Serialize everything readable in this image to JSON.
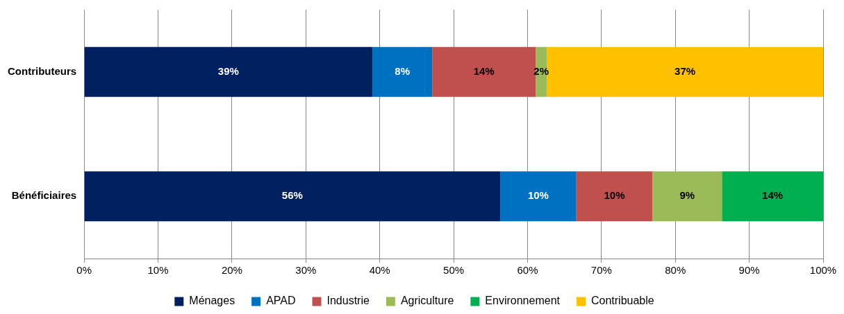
{
  "chart_data": {
    "type": "bar",
    "orientation": "horizontal",
    "stacked": true,
    "categories": [
      "Contributeurs",
      "Bénéficiaires"
    ],
    "series": [
      {
        "name": "Ménages",
        "color": "#002060",
        "values": [
          39,
          56.3
        ],
        "value_labels": [
          "39%",
          "56%"
        ]
      },
      {
        "name": "APAD",
        "color": "#0070c0",
        "values": [
          8.1,
          10.3
        ],
        "value_labels": [
          "8%",
          "10%"
        ]
      },
      {
        "name": "Industrie",
        "color": "#c0504d",
        "values": [
          14,
          10.3
        ],
        "value_labels": [
          "14%",
          "10%"
        ]
      },
      {
        "name": "Agriculture",
        "color": "#9bbb59",
        "values": [
          1.5,
          9.4
        ],
        "value_labels": [
          "2%",
          "9%"
        ]
      },
      {
        "name": "Environnement",
        "color": "#00b050",
        "values": [
          null,
          13.7
        ],
        "value_labels": [
          null,
          "14%"
        ]
      },
      {
        "name": "Contribuable",
        "color": "#ffc000",
        "values": [
          37.4,
          null
        ],
        "value_labels": [
          "37%",
          null
        ]
      }
    ],
    "xlim": [
      0,
      100
    ],
    "xticks": [
      {
        "value": 0,
        "label": "0%"
      },
      {
        "value": 10,
        "label": "10%"
      },
      {
        "value": 20,
        "label": "20%"
      },
      {
        "value": 30,
        "label": "30%"
      },
      {
        "value": 40,
        "label": "40%"
      },
      {
        "value": 50,
        "label": "50%"
      },
      {
        "value": 60,
        "label": "60%"
      },
      {
        "value": 70,
        "label": "70%"
      },
      {
        "value": 80,
        "label": "80%"
      },
      {
        "value": 90,
        "label": "90%"
      },
      {
        "value": 100,
        "label": "100%"
      }
    ],
    "grid": "x",
    "legend": "bottom"
  }
}
